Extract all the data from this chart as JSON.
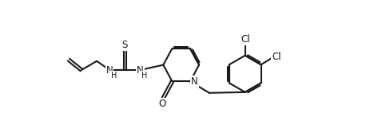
{
  "background_color": "#ffffff",
  "line_color": "#1a1a1a",
  "line_width": 1.5,
  "font_size": 8.5,
  "xlim": [
    0,
    10
  ],
  "ylim": [
    0,
    5.5
  ],
  "figsize": [
    4.63,
    1.76
  ],
  "dpi": 100
}
